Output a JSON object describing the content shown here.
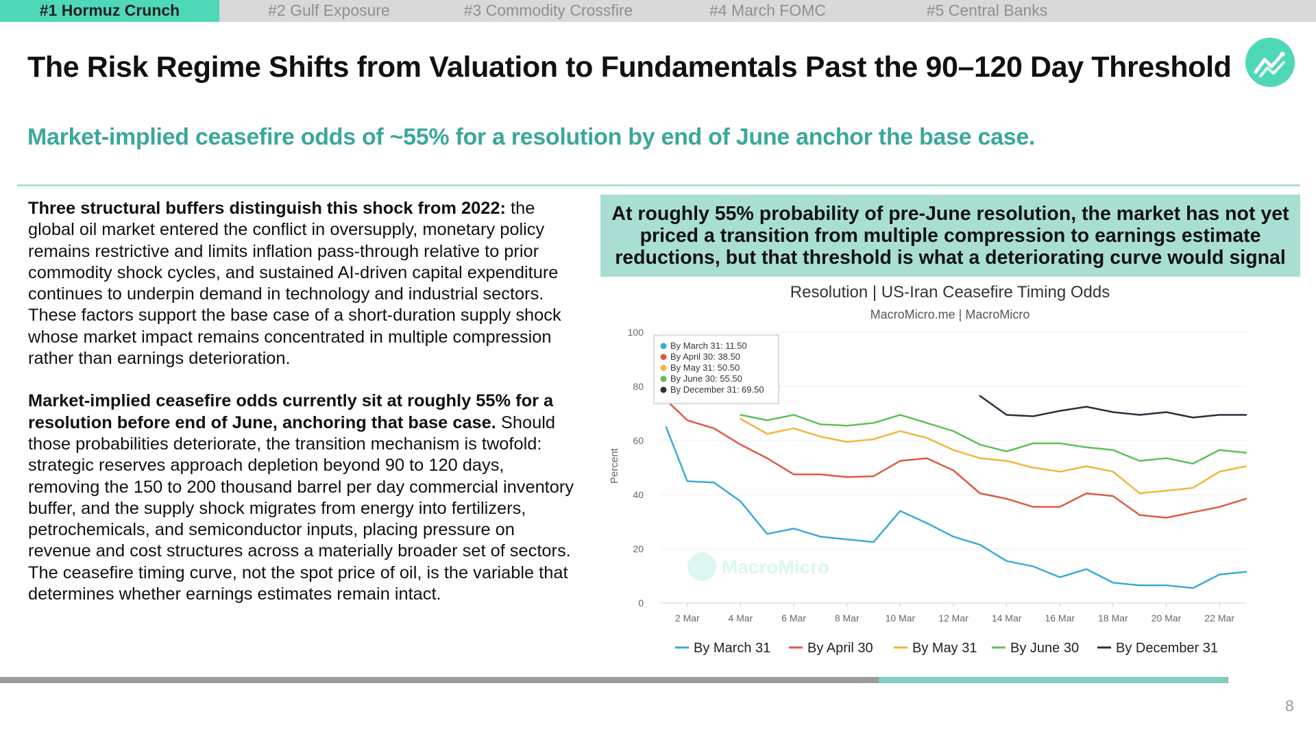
{
  "tabs": [
    {
      "label": "#1 Hormuz Crunch",
      "active": true
    },
    {
      "label": "#2 Gulf Exposure",
      "active": false
    },
    {
      "label": "#3 Commodity Crossfire",
      "active": false
    },
    {
      "label": "#4 March FOMC",
      "active": false
    },
    {
      "label": "#5 Central Banks",
      "active": false
    }
  ],
  "title": "The Risk Regime Shifts from Valuation to Fundamentals Past the 90–120 Day Threshold",
  "logo_icon": "trend-line-chart-icon",
  "subtitle": "Market-implied ceasefire odds of ~55% for a resolution by end of June anchor the base case.",
  "body": {
    "p1_lead": "Three structural buffers distinguish this shock from 2022:",
    "p1_text": " the global oil market entered the conflict in oversupply, monetary policy remains restrictive and limits inflation pass-through relative to prior commodity shock cycles, and sustained AI-driven capital expenditure continues to underpin demand in technology and industrial sectors. These factors support the base case of a short-duration supply shock whose market impact remains concentrated in multiple compression rather than earnings deterioration.",
    "p2_lead": "Market-implied ceasefire odds currently sit at roughly 55% for a resolution before end of June, anchoring that base case.",
    "p2_text": " Should those probabilities deteriorate, the transition mechanism is twofold: strategic reserves approach depletion beyond 90 to 120 days, removing the 150 to 200 thousand barrel per day commercial inventory buffer, and the supply shock migrates from energy into fertilizers, petrochemicals, and semiconductor inputs, placing pressure on revenue and cost structures across a materially broader set of sectors. The ceasefire timing curve, not the spot price of oil, is the variable that determines whether earnings estimates remain intact."
  },
  "callout": "At roughly 55% probability of pre-June resolution, the market has not yet priced a transition from multiple compression to earnings estimate reductions, but that threshold is what a deteriorating curve would signal",
  "page_number": "8",
  "progress": 1.0,
  "progress_segment_fraction": 0.285,
  "colors": {
    "accent": "#4fd8b7",
    "subtitle": "#3aa89a",
    "callout_bg": "#a9dfd3",
    "march": "#3aabd4",
    "april": "#dc5a44",
    "may": "#efb73d",
    "june": "#5dc058",
    "december": "#2b2f3d"
  },
  "chart_data": {
    "type": "line",
    "title": "Resolution | US-Iran Ceasefire Timing Odds",
    "subtitle": "MacroMicro.me | MacroMicro",
    "watermark": "MacroMicro",
    "ylabel": "Percent",
    "xlabel": "",
    "ylim": [
      0,
      100
    ],
    "yticks": [
      0,
      20,
      40,
      60,
      80,
      100
    ],
    "xlim": [
      1,
      23
    ],
    "xticks": [
      "2 Mar",
      "4 Mar",
      "6 Mar",
      "8 Mar",
      "10 Mar",
      "12 Mar",
      "14 Mar",
      "16 Mar",
      "18 Mar",
      "20 Mar",
      "22 Mar"
    ],
    "xtick_days": [
      2,
      4,
      6,
      8,
      10,
      12,
      14,
      16,
      18,
      20,
      22
    ],
    "grid": true,
    "legend": "bottom",
    "tooltip": {
      "items": [
        "By March 31: 11.50",
        "By April 30: 38.50",
        "By May 31: 50.50",
        "By June 30: 55.50",
        "By December 31: 69.50"
      ]
    },
    "series": [
      {
        "name": "By March 31",
        "color": "#3aabd4",
        "x": [
          1.2,
          2,
          3,
          4,
          5,
          6,
          7,
          8,
          9,
          10,
          11,
          12,
          13,
          14,
          15,
          16,
          17,
          18,
          19,
          20,
          21,
          22,
          23
        ],
        "y": [
          65,
          45,
          44.5,
          37.5,
          25.5,
          27.5,
          24.5,
          23.5,
          22.5,
          34,
          29.5,
          24.5,
          21.5,
          15.5,
          13.5,
          9.5,
          12.5,
          7.5,
          6.5,
          6.5,
          5.5,
          10.5,
          11.5
        ]
      },
      {
        "name": "By April 30",
        "color": "#dc5a44",
        "x": [
          1.2,
          2,
          3,
          4,
          5,
          6,
          7,
          8,
          9,
          10,
          11,
          12,
          13,
          14,
          15,
          16,
          17,
          18,
          19,
          20,
          21,
          22,
          23
        ],
        "y": [
          75,
          67.5,
          64.5,
          58.5,
          53.5,
          47.5,
          47.5,
          46.5,
          46.8,
          52.5,
          53.5,
          49,
          40.5,
          38.5,
          35.5,
          35.5,
          40.5,
          39.5,
          32.5,
          31.5,
          33.5,
          35.5,
          38.5
        ]
      },
      {
        "name": "By May 31",
        "color": "#efb73d",
        "x": [
          4,
          5,
          6,
          7,
          8,
          9,
          10,
          11,
          12,
          13,
          14,
          15,
          16,
          17,
          18,
          19,
          20,
          21,
          22,
          23
        ],
        "y": [
          68,
          62.5,
          64.5,
          61.5,
          59.5,
          60.5,
          63.5,
          61,
          56.5,
          53.5,
          52.5,
          50,
          48.5,
          50.5,
          48.5,
          40.5,
          41.5,
          42.5,
          48.5,
          50.5
        ]
      },
      {
        "name": "By June 30",
        "color": "#5dc058",
        "x": [
          4,
          5,
          6,
          7,
          8,
          9,
          10,
          11,
          12,
          13,
          14,
          15,
          16,
          17,
          18,
          19,
          20,
          21,
          22,
          23
        ],
        "y": [
          69.5,
          67.5,
          69.5,
          66,
          65.5,
          66.5,
          69.5,
          66.5,
          63.5,
          58.5,
          56,
          59,
          59,
          57.5,
          56.5,
          52.5,
          53.5,
          51.5,
          56.5,
          55.5
        ]
      },
      {
        "name": "By December 31",
        "color": "#2b2f3d",
        "x": [
          13,
          14,
          15,
          16,
          17,
          18,
          19,
          20,
          21,
          22,
          23
        ],
        "y": [
          76.5,
          69.5,
          69,
          71,
          72.5,
          70.5,
          69.5,
          70.5,
          68.5,
          69.5,
          69.5
        ]
      }
    ]
  }
}
